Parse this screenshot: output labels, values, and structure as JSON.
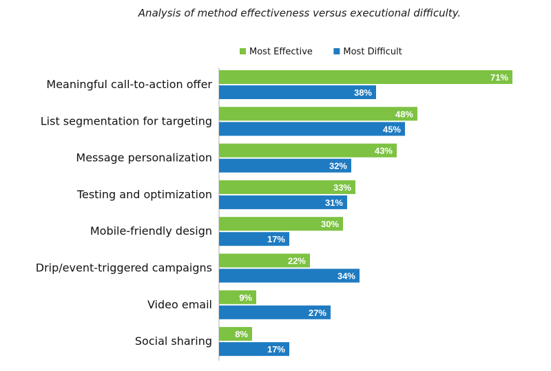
{
  "chart_data": {
    "type": "bar",
    "orientation": "horizontal",
    "title": "Analysis of method effectiveness versus executional difficulty.",
    "categories": [
      "Meaningful call-to-action offer",
      "List segmentation for targeting",
      "Message personalization",
      "Testing and optimization",
      "Mobile-friendly design",
      "Drip/event-triggered campaigns",
      "Video email",
      "Social sharing"
    ],
    "series": [
      {
        "name": "Most Effective",
        "color": "#7dc242",
        "values": [
          71,
          48,
          43,
          33,
          30,
          22,
          9,
          8
        ]
      },
      {
        "name": "Most Difficult",
        "color": "#1f7bc1",
        "values": [
          38,
          45,
          32,
          31,
          17,
          34,
          27,
          17
        ]
      }
    ],
    "value_suffix": "%",
    "xlim": [
      0,
      75
    ],
    "grid": false,
    "legend_position": "top"
  }
}
